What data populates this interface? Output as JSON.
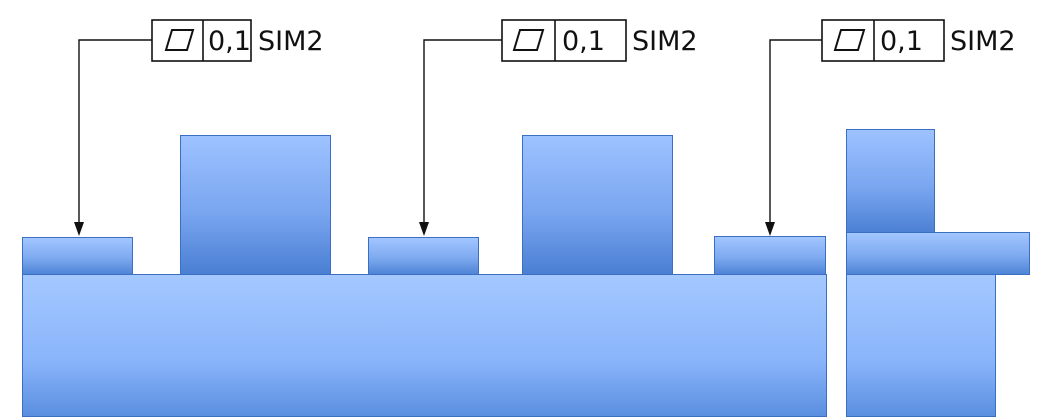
{
  "callouts": [
    {
      "symbol": "flatness-icon",
      "tolerance": "0,1",
      "modifier": "SIM2"
    },
    {
      "symbol": "flatness-icon",
      "tolerance": "0,1",
      "modifier": "SIM2"
    },
    {
      "symbol": "flatness-icon",
      "tolerance": "0,1",
      "modifier": "SIM2"
    }
  ],
  "colors": {
    "block_fill_top": "#a2c6ff",
    "block_fill_bottom": "#4f84d6",
    "block_edge": "#3a6fc4",
    "line": "#111111"
  }
}
